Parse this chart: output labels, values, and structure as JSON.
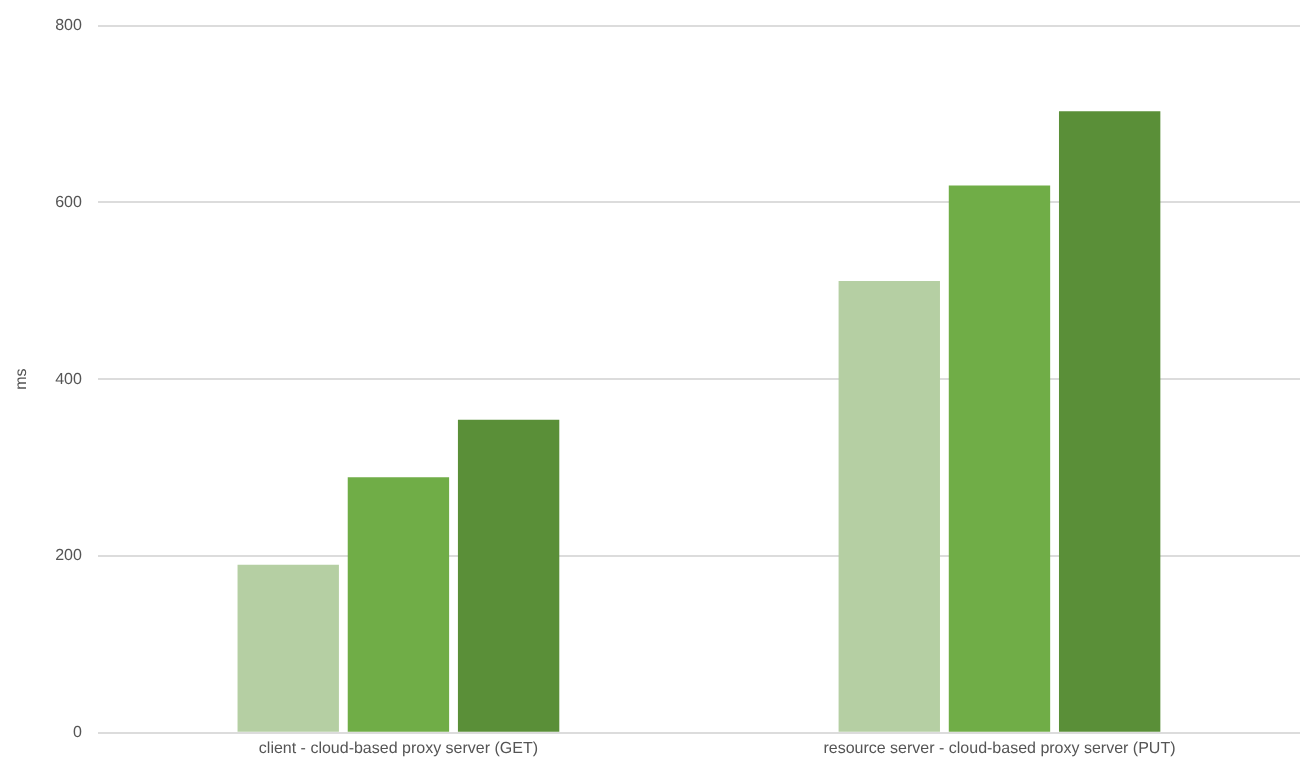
{
  "chart_data": {
    "type": "bar",
    "ylabel": "ms",
    "categories": [
      "client - cloud-based proxy server (GET)",
      "resource server - cloud-based proxy server (PUT)"
    ],
    "series": [
      {
        "color": "#b5cfa3",
        "values": [
          190,
          511
        ]
      },
      {
        "color": "#70ad47",
        "values": [
          289,
          619
        ]
      },
      {
        "color": "#5a8f38",
        "values": [
          354,
          703
        ]
      }
    ],
    "ylim": [
      0,
      800
    ],
    "yticks": [
      0,
      200,
      400,
      600,
      800
    ],
    "grid": "y",
    "legend": false
  }
}
